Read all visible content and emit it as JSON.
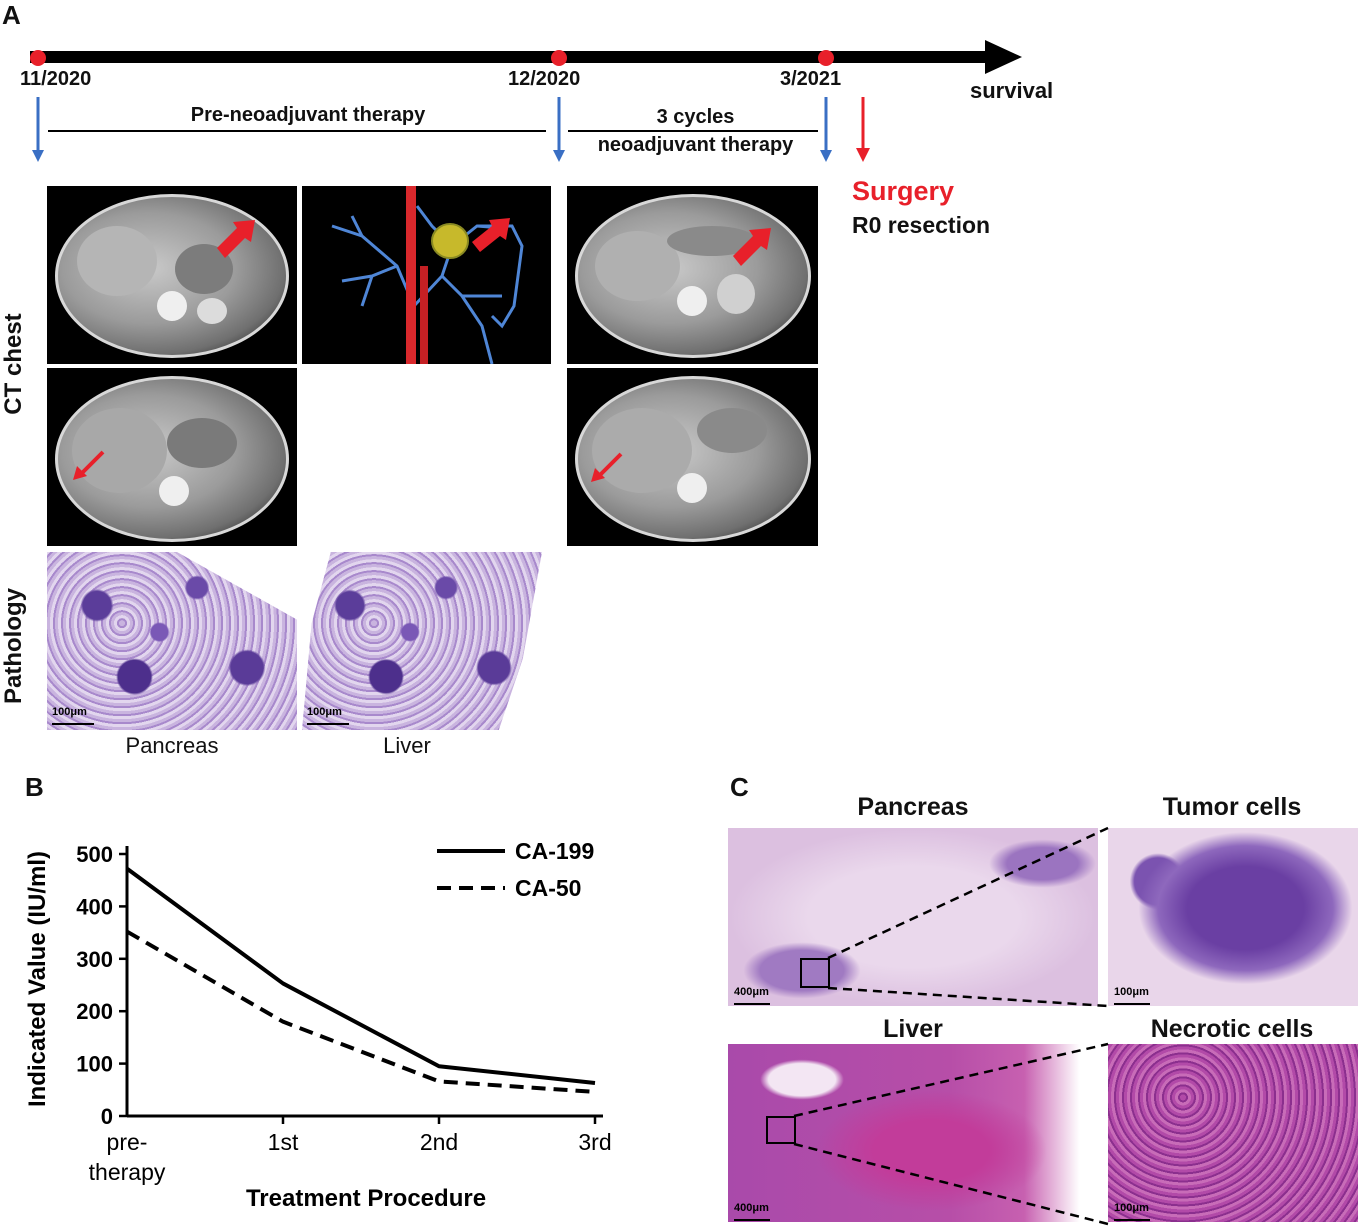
{
  "panel_a": {
    "letter": "A",
    "timeline": {
      "dates": [
        "11/2020",
        "12/2020",
        "3/2021"
      ],
      "end_label": "survival",
      "phase1_label": "Pre-neoadjuvant therapy",
      "phase2_label_line1": "3 cycles",
      "phase2_label_line2": "neoadjuvant therapy",
      "event_label": "Surgery",
      "event_detail": "R0 resection",
      "accent_red": "#e8202a",
      "arrow_blue": "#3a6fc4"
    },
    "row_labels": {
      "ct": "CT chest",
      "pathology": "Pathology"
    },
    "pathology": {
      "scale": "100μm",
      "captions": [
        "Pancreas",
        "Liver"
      ]
    }
  },
  "panel_b": {
    "letter": "B"
  },
  "chart_data": {
    "type": "line",
    "categories": [
      "pre-\ntherapy",
      "1st",
      "2nd",
      "3rd"
    ],
    "category_lines": [
      [
        "pre-",
        "therapy"
      ],
      [
        "1st"
      ],
      [
        "2nd"
      ],
      [
        "3rd"
      ]
    ],
    "series": [
      {
        "name": "CA-199",
        "values": [
          472,
          253,
          95,
          63
        ],
        "style": "solid"
      },
      {
        "name": "CA-50",
        "values": [
          352,
          180,
          66,
          46
        ],
        "style": "dashed"
      }
    ],
    "xlabel": "Treatment Procedure",
    "ylabel": "Indicated Value (IU/ml)",
    "ylim": [
      0,
      500
    ],
    "yticks": [
      0,
      100,
      200,
      300,
      400,
      500
    ],
    "legend_position": "top-right",
    "grid": false
  },
  "panel_c": {
    "letter": "C",
    "titles": [
      "Pancreas",
      "Tumor cells",
      "Liver",
      "Necrotic cells"
    ],
    "scales": [
      "400μm",
      "100μm",
      "400μm",
      "100μm"
    ]
  }
}
